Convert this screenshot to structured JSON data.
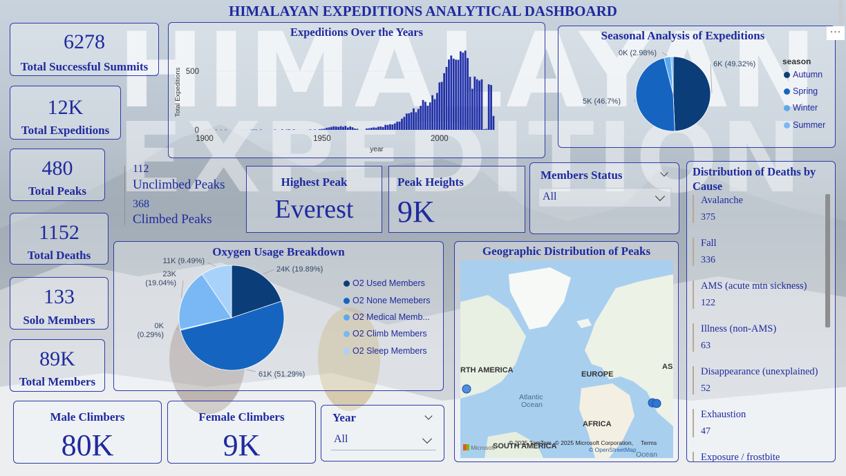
{
  "title": "HIMALAYAN EXPEDITIONS ANALYTICAL DASHBOARD",
  "watermark": {
    "line1": "HIMALAYAN",
    "line2": "EXPEDITION"
  },
  "kpis": {
    "summits": {
      "value": "6278",
      "label": "Total Successful Summits"
    },
    "expeditions": {
      "value": "12K",
      "label": "Total Expeditions"
    },
    "peaks": {
      "value": "480",
      "label": "Total Peaks"
    },
    "deaths": {
      "value": "1152",
      "label": "Total Deaths"
    },
    "solo": {
      "value": "133",
      "label": "Solo Members"
    },
    "members": {
      "value": "89K",
      "label": "Total Members"
    },
    "male": {
      "value": "80K",
      "label": "Male Climbers"
    },
    "female": {
      "value": "9K",
      "label": "Female Climbers"
    }
  },
  "peak_status": {
    "unclimbed_value": "112",
    "unclimbed_label": "Unclimbed Peaks",
    "climbed_value": "368",
    "climbed_label": "Climbed Peaks"
  },
  "highest_peak": {
    "label": "Highest Peak",
    "value": "Everest"
  },
  "peak_heights": {
    "label": "Peak Heights",
    "value": "9K"
  },
  "members_status": {
    "label": "Members Status",
    "value": "All"
  },
  "year_slicer": {
    "label": "Year",
    "value": "All"
  },
  "more_options_icon": "ellipsis-icon",
  "colors": {
    "dark": "#0b3d79",
    "mid": "#1565c0",
    "light": "#5ba8f0",
    "lighter": "#7ab8f5",
    "palest": "#a9d2fb",
    "bar": "#2130a8",
    "accent": "#1f2a9e"
  },
  "chart_data": [
    {
      "id": "expeditions_over_years",
      "type": "bar",
      "title": "Expeditions Over the Years",
      "xlabel": "year",
      "ylabel": "Total Expeditions",
      "xticks": [
        "1900",
        "1950",
        "2000"
      ],
      "yticks": [
        "0",
        "500"
      ],
      "xlim": [
        1900,
        2023
      ],
      "ylim": [
        0,
        700
      ],
      "x": [
        1905,
        1907,
        1909,
        1920,
        1921,
        1922,
        1924,
        1930,
        1933,
        1935,
        1936,
        1938,
        1945,
        1947,
        1949,
        1950,
        1951,
        1952,
        1953,
        1954,
        1955,
        1956,
        1957,
        1958,
        1959,
        1960,
        1961,
        1962,
        1963,
        1964,
        1965,
        1969,
        1970,
        1971,
        1972,
        1973,
        1974,
        1975,
        1976,
        1977,
        1978,
        1979,
        1980,
        1981,
        1982,
        1983,
        1984,
        1985,
        1986,
        1987,
        1988,
        1989,
        1990,
        1991,
        1992,
        1993,
        1994,
        1995,
        1996,
        1997,
        1998,
        1999,
        2000,
        2001,
        2002,
        2003,
        2004,
        2005,
        2006,
        2007,
        2008,
        2009,
        2010,
        2011,
        2012,
        2013,
        2014,
        2015,
        2016,
        2017,
        2018,
        2019,
        2020,
        2021,
        2022,
        2023
      ],
      "values": [
        2,
        1,
        2,
        2,
        3,
        2,
        3,
        3,
        4,
        3,
        5,
        4,
        4,
        4,
        6,
        8,
        10,
        18,
        21,
        25,
        30,
        28,
        25,
        32,
        26,
        34,
        20,
        29,
        22,
        11,
        9,
        12,
        14,
        18,
        21,
        19,
        27,
        29,
        24,
        43,
        42,
        48,
        46,
        55,
        69,
        70,
        95,
        111,
        139,
        141,
        150,
        183,
        150,
        179,
        205,
        254,
        239,
        206,
        234,
        295,
        262,
        315,
        404,
        409,
        483,
        536,
        599,
        633,
        606,
        598,
        597,
        669,
        658,
        675,
        612,
        452,
        350,
        454,
        431,
        420,
        430,
        6,
        9,
        388,
        382,
        119
      ]
    },
    {
      "id": "seasonal",
      "type": "pie",
      "title": "Seasonal Analysis of Expeditions",
      "legend_title": "season",
      "legend_placement": "right",
      "categories": [
        "Autumn",
        "Spring",
        "Winter",
        "Summer"
      ],
      "values": [
        49.32,
        46.7,
        2.98,
        1.0
      ],
      "labels": [
        "6K (49.32%)",
        "5K (46.7%)",
        "0K (2.98%)",
        ""
      ]
    },
    {
      "id": "oxygen",
      "type": "pie",
      "title": "Oxygen Usage Breakdown",
      "legend_placement": "right",
      "categories": [
        "O2 Used Members",
        "O2 None Memebers",
        "O2 Medical Memb...",
        "O2 Climb Members",
        "O2 Sleep Members"
      ],
      "values": [
        19.89,
        51.29,
        0.29,
        19.04,
        9.49
      ],
      "labels": [
        "24K (19.89%)",
        "61K (51.29%)",
        "0K (0.29%)",
        "23K (19.04%)",
        "11K (9.49%)"
      ]
    },
    {
      "id": "deaths_by_cause",
      "type": "table",
      "title": "Distribution of Deaths by Cause",
      "categories": [
        "Avalanche",
        "Fall",
        "AMS (acute mtn sickness)",
        "Illness (non-AMS)",
        "Disappearance (unexplained)",
        "Exhaustion",
        "Exposure / frostbite"
      ],
      "values": [
        375,
        336,
        122,
        63,
        52,
        47,
        null
      ]
    }
  ],
  "map": {
    "title": "Geographic Distribution of Peaks",
    "labels": {
      "north_america": "RTH AMERICA",
      "europe": "EUROPE",
      "asia": "ASI",
      "africa": "AFRICA",
      "south_america": "SOUTH AMERICA",
      "atlantic": "Atlantic",
      "ocean": "Ocean",
      "indian_ocean": "Ocean"
    },
    "attribution": "© 2025 TomTom, © 2025 Microsoft Corporation,",
    "terms": "Terms",
    "osm": "© OpenStreetMap",
    "brand": "Microsoft"
  }
}
